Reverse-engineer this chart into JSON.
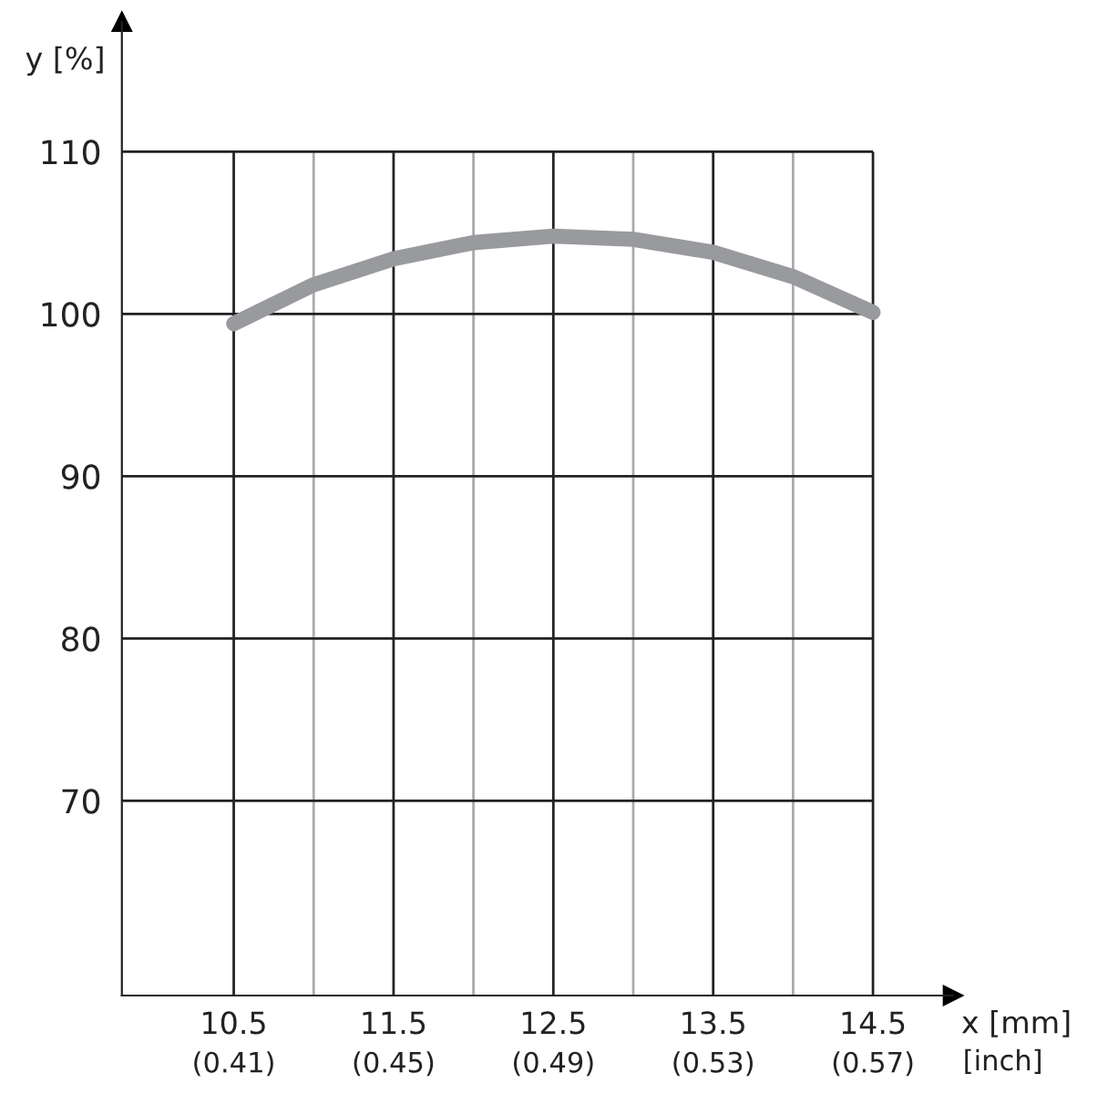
{
  "chart_data": {
    "type": "line",
    "xlabel": "x [mm]",
    "ylabel": "y [%]",
    "x": [
      10.5,
      11.0,
      11.5,
      12.0,
      12.5,
      13.0,
      13.5,
      14.0,
      14.5
    ],
    "series": [
      {
        "color": "#999a9e",
        "values": [
          99.4,
          101.8,
          103.4,
          104.4,
          104.8,
          104.6,
          103.8,
          102.3,
          100.1
        ]
      }
    ],
    "xlim": [
      9.8,
      15
    ],
    "ylim": [
      58,
      118
    ],
    "xticks": [
      10.5,
      11.5,
      12.5,
      13.5,
      14.5
    ],
    "x2label": "[inch]",
    "x2lim": [
      0.382,
      0.59
    ],
    "x2ticks": [
      {
        "value": 0.41,
        "label": "(0.41)"
      },
      {
        "value": 0.45,
        "label": "(0.45)"
      },
      {
        "value": 0.49,
        "label": "(0.49)"
      },
      {
        "value": 0.53,
        "label": "(0.53)"
      },
      {
        "value": 0.57,
        "label": "(0.57)"
      }
    ],
    "yticks": [
      70,
      80,
      90,
      100,
      110
    ],
    "grid": true,
    "marker": "none",
    "line_style": "solid"
  }
}
